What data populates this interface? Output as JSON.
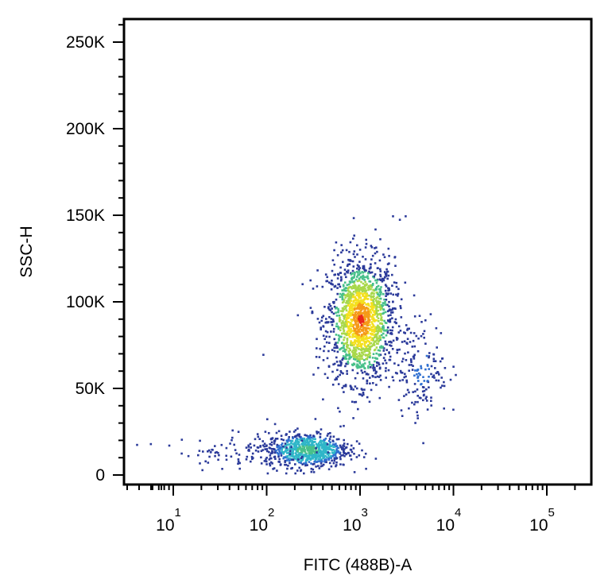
{
  "chart_data": {
    "type": "scatter",
    "subtype": "flow-cytometry-density-dot-plot",
    "xlabel": "FITC (488B)-A",
    "ylabel": "SSC-H",
    "x_scale": "biexponential",
    "y_scale": "linear",
    "xlim": [
      0,
      300000
    ],
    "ylim": [
      0,
      262144
    ],
    "x_ticks": [
      {
        "base": "10",
        "exp": "1",
        "value": 10
      },
      {
        "base": "10",
        "exp": "2",
        "value": 100
      },
      {
        "base": "10",
        "exp": "3",
        "value": 1000
      },
      {
        "base": "10",
        "exp": "4",
        "value": 10000
      },
      {
        "base": "10",
        "exp": "5",
        "value": 100000
      }
    ],
    "y_ticks": [
      {
        "label": "0",
        "value": 0
      },
      {
        "label": "50K",
        "value": 50000
      },
      {
        "label": "100K",
        "value": 100000
      },
      {
        "label": "150K",
        "value": 150000
      },
      {
        "label": "200K",
        "value": 200000
      },
      {
        "label": "250K",
        "value": 250000
      }
    ],
    "density_colormap": [
      "#2b3a9a",
      "#2f6fd0",
      "#2fb6c8",
      "#48c08a",
      "#a8d84a",
      "#f4e01e",
      "#f59a18",
      "#e8261a"
    ],
    "populations": [
      {
        "center_x": 1000,
        "center_y": 90000,
        "spread_x_decades": 0.18,
        "spread_y": 18000,
        "relative_count": 0.62
      },
      {
        "center_x": 270,
        "center_y": 15000,
        "spread_x_decades": 0.22,
        "spread_y": 5000,
        "relative_count": 0.28
      },
      {
        "center_x": 4500,
        "center_y": 62000,
        "spread_x_decades": 0.14,
        "spread_y": 14000,
        "relative_count": 0.06
      },
      {
        "center_x": 60,
        "center_y": 14000,
        "spread_x_decades": 0.35,
        "spread_y": 5000,
        "relative_count": 0.04
      }
    ],
    "grid": false,
    "legend": "none"
  }
}
